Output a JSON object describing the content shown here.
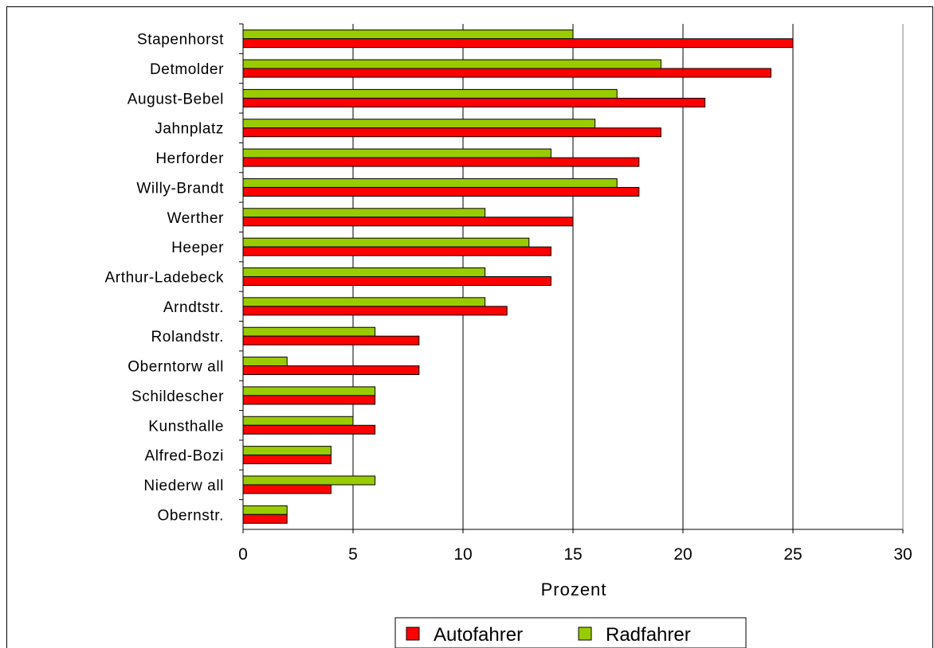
{
  "chart_data": {
    "type": "bar",
    "orientation": "horizontal",
    "title": "",
    "xlabel": "Prozent",
    "ylabel": "",
    "xlim": [
      0,
      30
    ],
    "xticks": [
      0,
      5,
      10,
      15,
      20,
      25,
      30
    ],
    "grid": "vertical",
    "legend_position": "bottom",
    "categories": [
      "Stapenhorst",
      "Detmolder",
      "August-Bebel",
      "Jahnplatz",
      "Herforder",
      "Willy-Brandt",
      "Werther",
      "Heeper",
      "Arthur-Ladebeck",
      "Arndtstr.",
      "Rolandstr.",
      "Oberntorw all",
      "Schildescher",
      "Kunsthalle",
      "Alfred-Bozi",
      "Niederw all",
      "Obernstr."
    ],
    "series": [
      {
        "name": "Autofahrer",
        "color": "#ff0000",
        "values": [
          25,
          24,
          21,
          19,
          18,
          18,
          15,
          14,
          14,
          12,
          8,
          8,
          6,
          6,
          4,
          4,
          2
        ]
      },
      {
        "name": "Radfahrer",
        "color": "#99cc00",
        "values": [
          15,
          19,
          17,
          16,
          14,
          17,
          11,
          13,
          11,
          11,
          6,
          2,
          6,
          5,
          4,
          6,
          2
        ]
      }
    ]
  }
}
